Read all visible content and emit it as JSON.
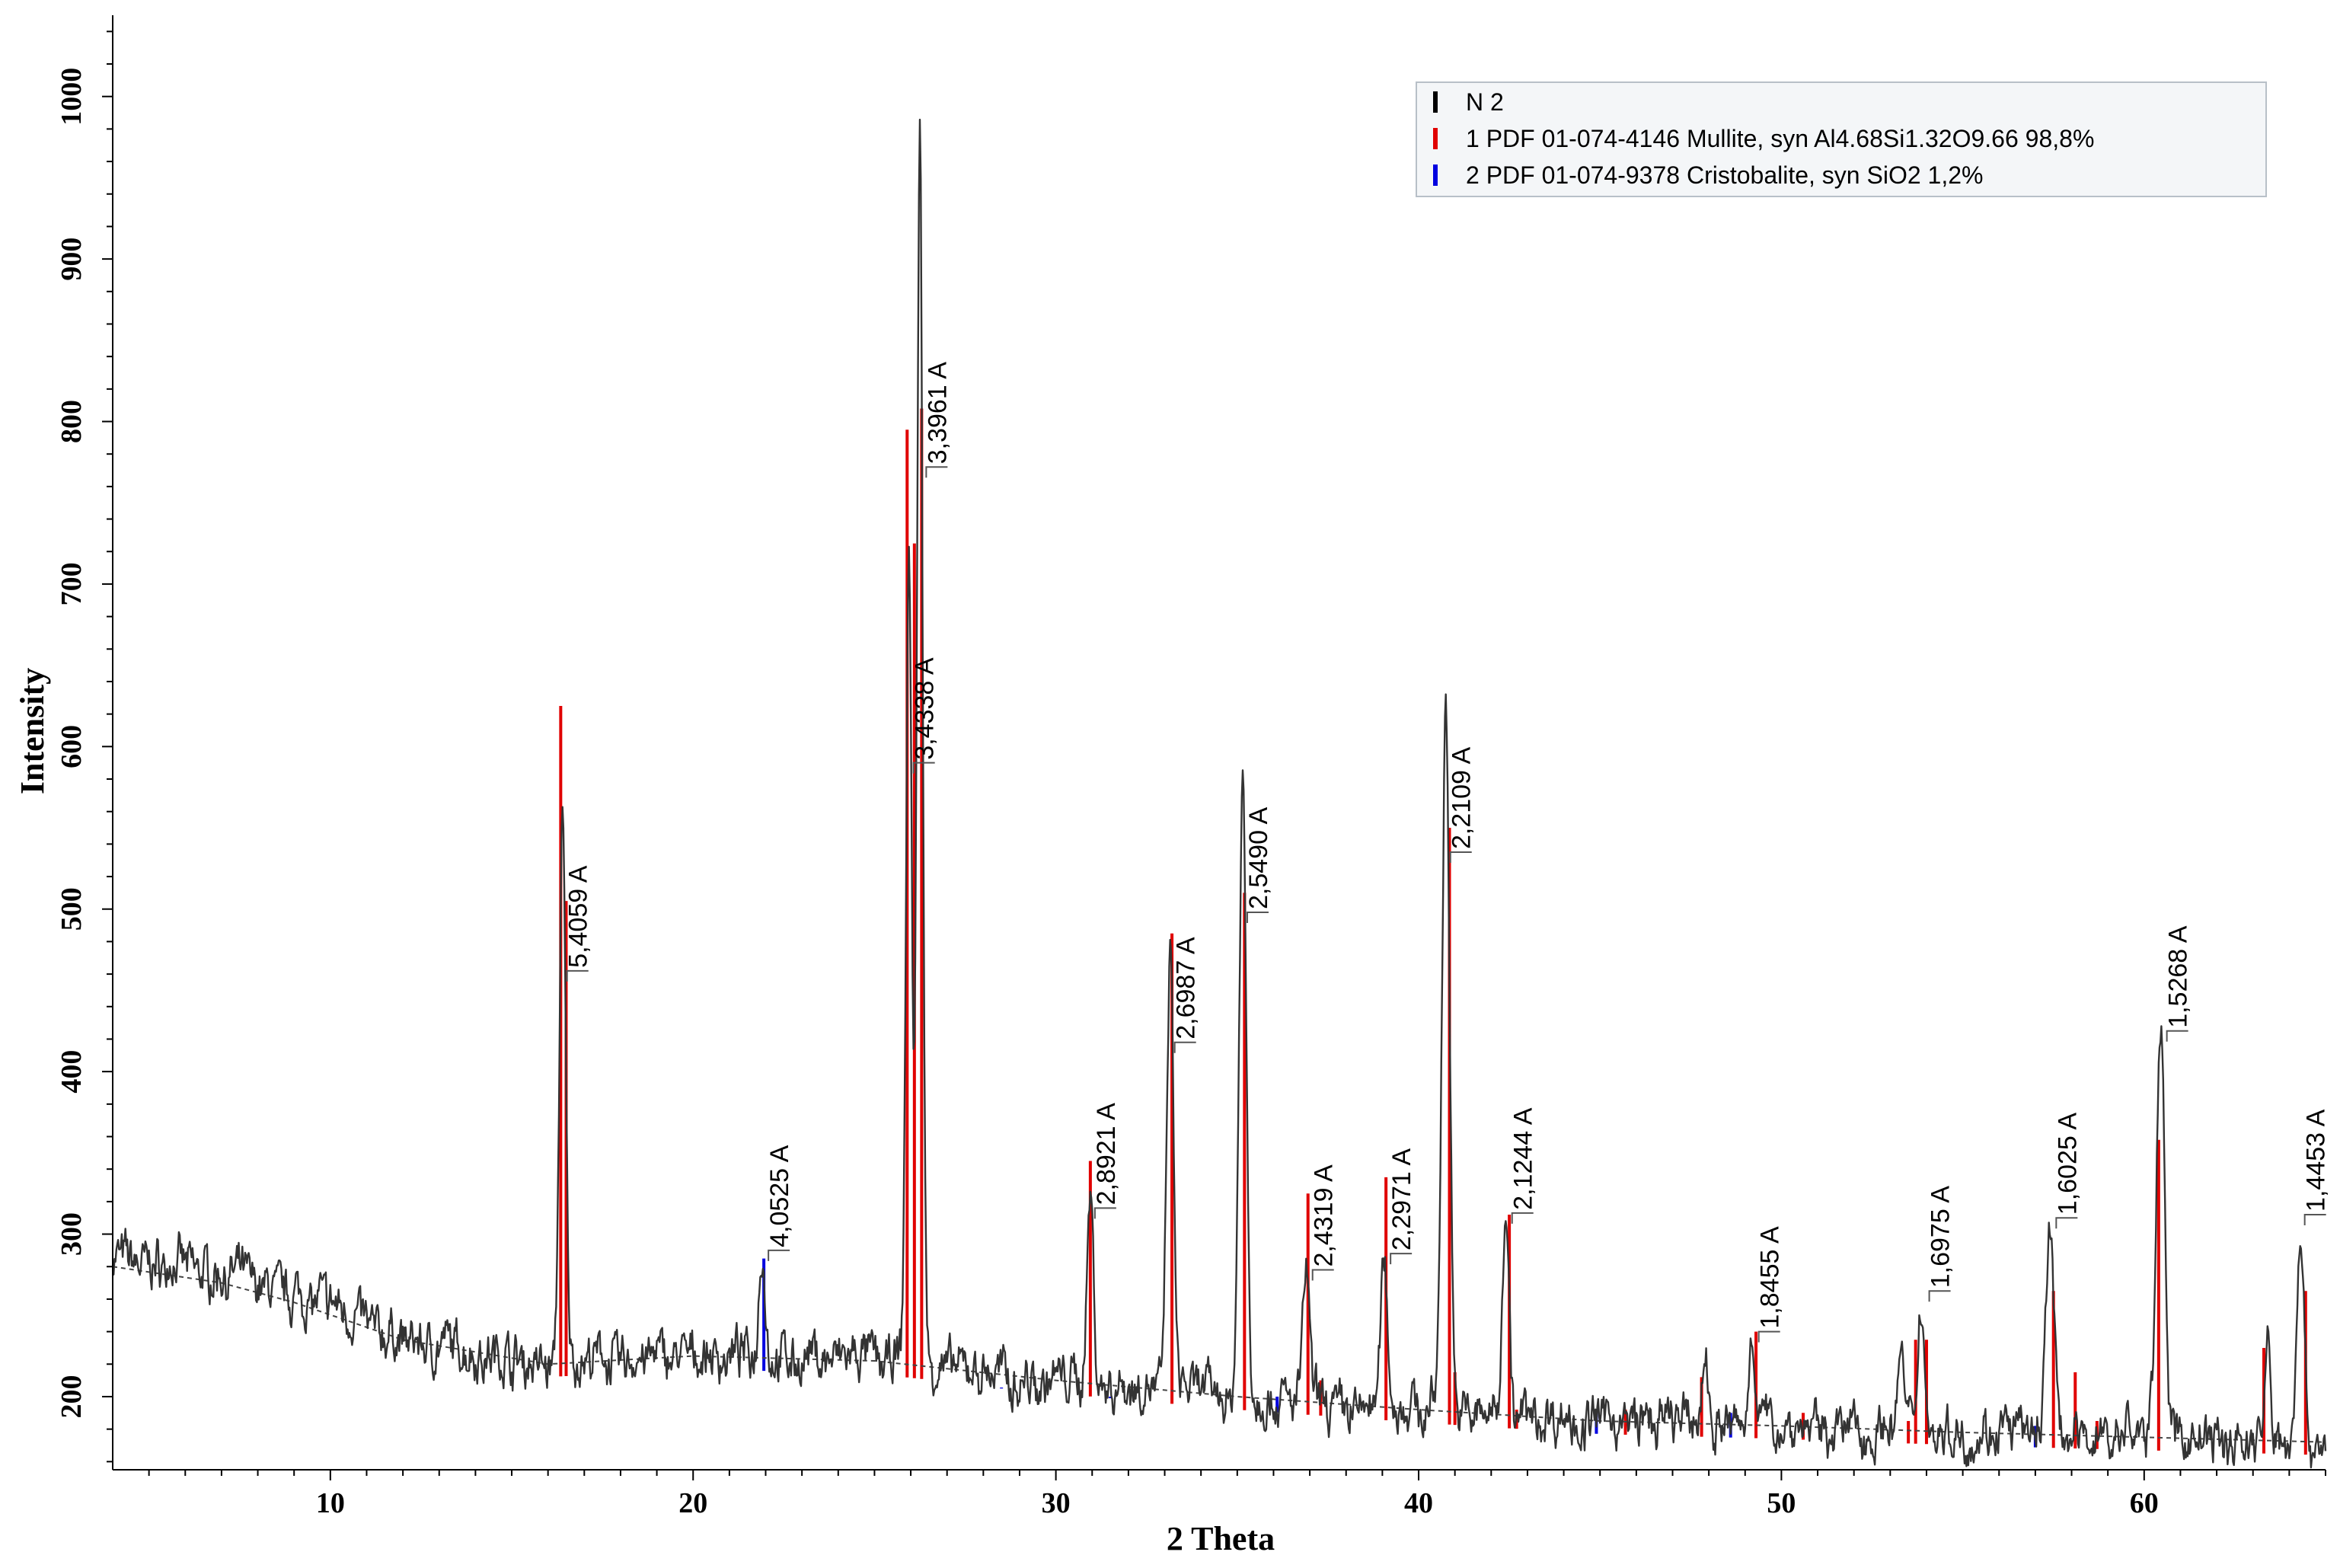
{
  "chart_data": {
    "type": "line",
    "xlabel": "2 Theta",
    "ylabel": "Intensity",
    "xlim": [
      4,
      65
    ],
    "ylim": [
      155,
      1050
    ],
    "x_ticks": [
      10,
      20,
      30,
      40,
      50,
      60
    ],
    "x_tick_labels": [
      "10",
      "20",
      "30",
      "40",
      "50",
      "60"
    ],
    "y_ticks": [
      200,
      300,
      400,
      500,
      600,
      700,
      800,
      900,
      1000
    ],
    "y_tick_labels": [
      "200",
      "300",
      "400",
      "500",
      "600",
      "700",
      "800",
      "900",
      "1000"
    ],
    "legend": {
      "placement": "top-right",
      "entries": [
        {
          "label": "N 2",
          "color": "#000000"
        },
        {
          "label": "1 PDF 01-074-4146 Mullite, syn Al4.68Si1.32O9.66 98,8%",
          "color": "#e00000"
        },
        {
          "label": "2 PDF 01-074-9378 Cristobalite, syn SiO2 1,2%",
          "color": "#0000e0"
        }
      ]
    },
    "series": [
      {
        "name": "N 2",
        "color": "#333333",
        "peaks": [
          {
            "x": 16.4,
            "y": 550,
            "w": 0.12
          },
          {
            "x": 21.9,
            "y": 295,
            "w": 0.12
          },
          {
            "x": 25.95,
            "y": 720,
            "w": 0.11
          },
          {
            "x": 26.25,
            "y": 975,
            "w": 0.11
          },
          {
            "x": 30.95,
            "y": 325,
            "w": 0.13
          },
          {
            "x": 33.15,
            "y": 470,
            "w": 0.13
          },
          {
            "x": 35.15,
            "y": 580,
            "w": 0.14
          },
          {
            "x": 36.9,
            "y": 280,
            "w": 0.13
          },
          {
            "x": 39.05,
            "y": 290,
            "w": 0.13
          },
          {
            "x": 40.75,
            "y": 620,
            "w": 0.15
          },
          {
            "x": 42.4,
            "y": 325,
            "w": 0.13
          },
          {
            "x": 47.9,
            "y": 225,
            "w": 0.1
          },
          {
            "x": 49.2,
            "y": 240,
            "w": 0.12
          },
          {
            "x": 53.3,
            "y": 230,
            "w": 0.1
          },
          {
            "x": 53.85,
            "y": 255,
            "w": 0.12
          },
          {
            "x": 57.4,
            "y": 305,
            "w": 0.15
          },
          {
            "x": 60.45,
            "y": 435,
            "w": 0.16
          },
          {
            "x": 63.4,
            "y": 230,
            "w": 0.1
          },
          {
            "x": 64.3,
            "y": 305,
            "w": 0.14
          }
        ]
      },
      {
        "name": "Background",
        "color": "#333333",
        "points": [
          [
            4,
            280
          ],
          [
            7,
            270
          ],
          [
            9,
            258
          ],
          [
            12,
            235
          ],
          [
            16,
            220
          ],
          [
            20,
            225
          ],
          [
            25,
            222
          ],
          [
            30,
            210
          ],
          [
            35,
            200
          ],
          [
            40,
            192
          ],
          [
            45,
            185
          ],
          [
            50,
            182
          ],
          [
            55,
            178
          ],
          [
            60,
            175
          ],
          [
            65,
            172
          ]
        ]
      }
    ],
    "reference_sticks": [
      {
        "phase": "Mullite",
        "color": "#e00000",
        "sticks": [
          [
            16.35,
            625
          ],
          [
            16.5,
            505
          ],
          [
            25.9,
            795
          ],
          [
            26.1,
            725
          ],
          [
            26.3,
            808
          ],
          [
            30.95,
            345
          ],
          [
            33.2,
            485
          ],
          [
            35.2,
            510
          ],
          [
            36.95,
            325
          ],
          [
            37.3,
            210
          ],
          [
            39.1,
            335
          ],
          [
            40.85,
            550
          ],
          [
            41.0,
            215
          ],
          [
            42.5,
            312
          ],
          [
            42.7,
            192
          ],
          [
            45.7,
            192
          ],
          [
            47.8,
            212
          ],
          [
            49.3,
            240
          ],
          [
            50.6,
            190
          ],
          [
            53.5,
            185
          ],
          [
            53.7,
            235
          ],
          [
            54.0,
            235
          ],
          [
            57.5,
            265
          ],
          [
            58.1,
            215
          ],
          [
            58.7,
            185
          ],
          [
            60.4,
            358
          ],
          [
            63.3,
            230
          ],
          [
            64.45,
            265
          ]
        ]
      },
      {
        "phase": "Cristobalite",
        "color": "#0000e0",
        "sticks": [
          [
            21.95,
            285
          ],
          [
            28.5,
            205
          ],
          [
            31.5,
            200
          ],
          [
            36.1,
            200
          ],
          [
            44.9,
            192
          ],
          [
            48.6,
            190
          ],
          [
            57.0,
            182
          ]
        ]
      }
    ],
    "annotations": [
      {
        "text": "5,4059 A",
        "x": 16.4,
        "y": 462
      },
      {
        "text": "4,0525 A",
        "x": 21.95,
        "y": 290
      },
      {
        "text": "3,4338 A",
        "x": 25.95,
        "y": 590
      },
      {
        "text": "3,3961 A",
        "x": 26.3,
        "y": 772
      },
      {
        "text": "2,8921 A",
        "x": 30.95,
        "y": 316
      },
      {
        "text": "2,6987 A",
        "x": 33.15,
        "y": 418
      },
      {
        "text": "2,5490 A",
        "x": 35.15,
        "y": 498
      },
      {
        "text": "2,4319 A",
        "x": 36.95,
        "y": 278
      },
      {
        "text": "2,2971 A",
        "x": 39.1,
        "y": 288
      },
      {
        "text": "2,2109 A",
        "x": 40.75,
        "y": 535
      },
      {
        "text": "2,1244 A",
        "x": 42.45,
        "y": 313
      },
      {
        "text": "1,8455 A",
        "x": 49.25,
        "y": 240
      },
      {
        "text": "1,6975 A",
        "x": 53.95,
        "y": 265
      },
      {
        "text": "1,6025 A",
        "x": 57.45,
        "y": 310
      },
      {
        "text": "1,5268 A",
        "x": 60.5,
        "y": 425
      },
      {
        "text": "1,4453 A",
        "x": 64.3,
        "y": 312
      }
    ]
  }
}
